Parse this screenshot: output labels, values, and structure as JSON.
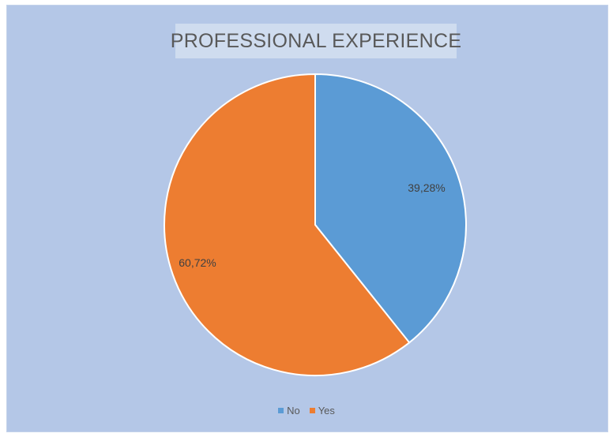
{
  "chart_data": {
    "type": "pie",
    "title": "PROFESSIONAL EXPERIENCE",
    "slices": [
      {
        "label": "No",
        "value": 39.28,
        "display": "39,28%",
        "color": "#5b9bd5"
      },
      {
        "label": "Yes",
        "value": 60.72,
        "display": "60,72%",
        "color": "#ed7d31"
      }
    ],
    "legend": {
      "placement": "bottom",
      "entries": [
        "No",
        "Yes"
      ]
    },
    "colors": {
      "plot_background": "#b4c7e7",
      "slice_border": "#ffffff"
    }
  }
}
